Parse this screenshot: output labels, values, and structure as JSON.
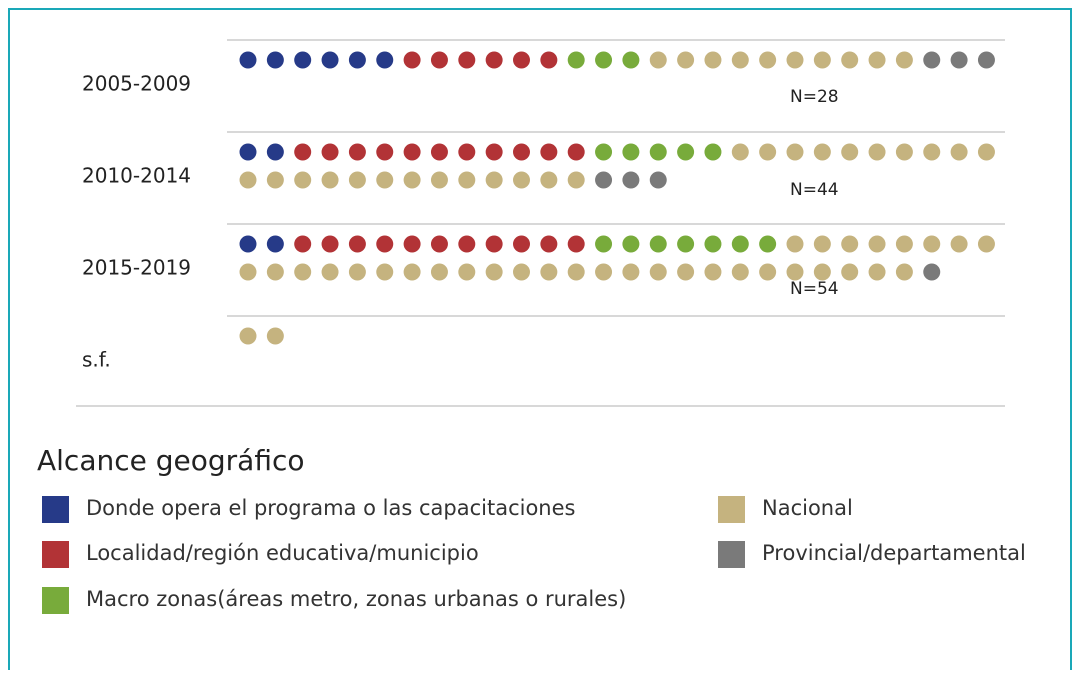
{
  "chart_data": {
    "type": "unit",
    "categories": [
      "2005-2009",
      "2010-2014",
      "2015-2019",
      "s.f."
    ],
    "n_labels": [
      "N=28",
      "N=44",
      "N=54",
      null
    ],
    "legend_title": "Alcance geográfico",
    "series": [
      {
        "name": "Donde opera el programa o las capacitaciones",
        "color": "#263a88",
        "values": [
          6,
          2,
          2,
          0
        ]
      },
      {
        "name": "Localidad/región educativa/municipio",
        "color": "#b23336",
        "values": [
          6,
          11,
          11,
          0
        ]
      },
      {
        "name": "Macro zonas(áreas metro, zonas urbanas o rurales)",
        "color": "#78ab3b",
        "values": [
          3,
          5,
          7,
          0
        ]
      },
      {
        "name": "Nacional",
        "color": "#c5b37f",
        "values": [
          10,
          23,
          33,
          2
        ]
      },
      {
        "name": "Provincial/departamental",
        "color": "#7a7a7a",
        "values": [
          3,
          3,
          1,
          0
        ]
      }
    ]
  }
}
